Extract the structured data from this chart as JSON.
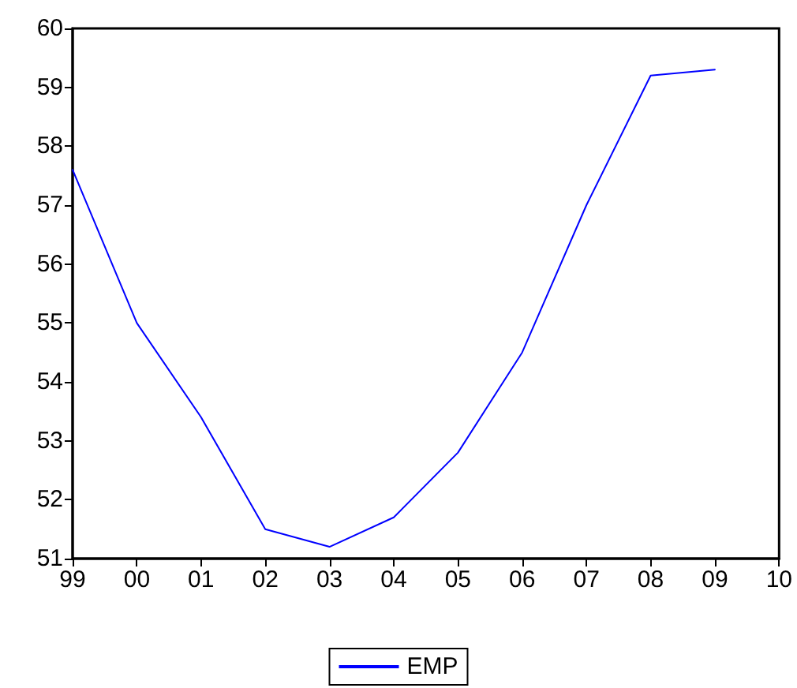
{
  "chart_data": {
    "type": "line",
    "categories": [
      "99",
      "00",
      "01",
      "02",
      "03",
      "04",
      "05",
      "06",
      "07",
      "08",
      "09",
      "10"
    ],
    "series": [
      {
        "name": "EMP",
        "color": "#0000ff",
        "values": [
          57.6,
          55.0,
          53.4,
          51.5,
          51.2,
          51.7,
          52.8,
          54.5,
          57.0,
          59.2,
          59.3,
          null
        ]
      }
    ],
    "ylim": [
      51,
      60
    ],
    "yticks": [
      51,
      52,
      53,
      54,
      55,
      56,
      57,
      58,
      59,
      60
    ],
    "grid": false,
    "legend": "bottom",
    "marker": "none",
    "line_style": "solid"
  }
}
